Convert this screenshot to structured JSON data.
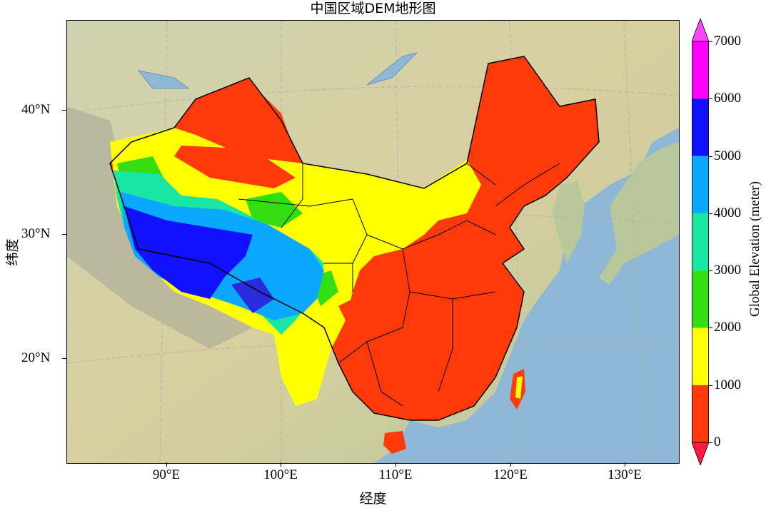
{
  "title": "中国区域DEM地形图",
  "xlabel": "经度",
  "ylabel": "纬度",
  "x_ticks": [
    "90°E",
    "100°E",
    "110°E",
    "120°E",
    "130°E"
  ],
  "y_ticks": [
    "20°N",
    "30°N",
    "40°N"
  ],
  "colorbar": {
    "label": "Global Elevation (meter)",
    "ticks": [
      "0",
      "1000",
      "2000",
      "3000",
      "4000",
      "5000",
      "6000",
      "7000"
    ],
    "levels": [
      0,
      1000,
      2000,
      3000,
      4000,
      5000,
      6000,
      7000
    ],
    "colors": [
      "#ff3a0a",
      "#ffff00",
      "#33dd11",
      "#19e6a5",
      "#0aa8ff",
      "#1111ff",
      "#ff00ff"
    ],
    "under_color": "#ff1a40",
    "over_color": "#ff44ff"
  },
  "colors": {
    "ocean": "#8fb7d6",
    "land": "#d9d1a3",
    "border": "#000000",
    "gridline": "#b0b0b0"
  }
}
